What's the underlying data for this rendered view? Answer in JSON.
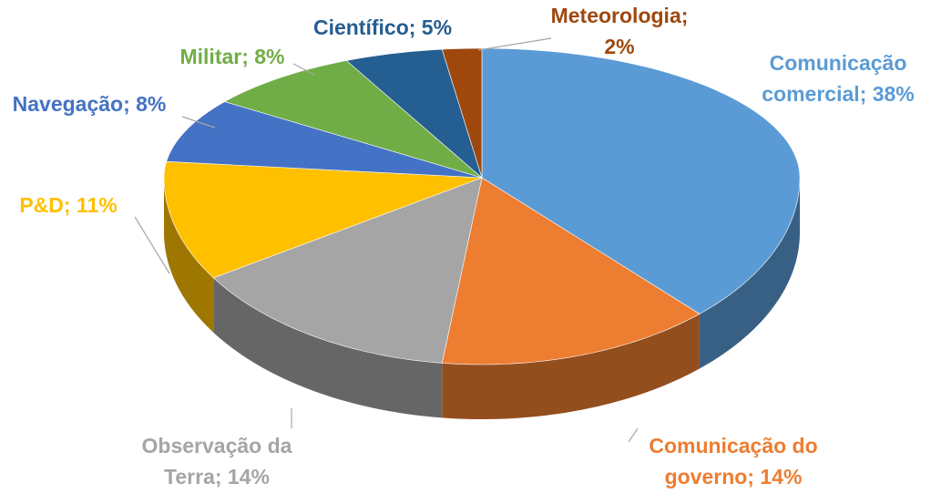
{
  "chart_data": {
    "type": "pie",
    "style": "3d",
    "start": "top, clockwise",
    "legend": "none (data labels)",
    "slices": [
      {
        "label": "Comunicação comercial",
        "value": 38,
        "text": "Comunicação comercial; 38%",
        "color": "#5B9BD5"
      },
      {
        "label": "Comunicação do governo",
        "value": 14,
        "text": "Comunicação do governo; 14%",
        "color": "#ED7D31"
      },
      {
        "label": "Observação da Terra",
        "value": 14,
        "text": "Observação da Terra; 14%",
        "color": "#A5A5A5"
      },
      {
        "label": "P&D",
        "value": 11,
        "text": "P&D; 11%",
        "color": "#FFC000"
      },
      {
        "label": "Navegação",
        "value": 8,
        "text": "Navegação; 8%",
        "color": "#4472C4"
      },
      {
        "label": "Militar",
        "value": 8,
        "text": "Militar; 8%",
        "color": "#70AD47"
      },
      {
        "label": "Científico",
        "value": 5,
        "text": "Científico; 5%",
        "color": "#255E91"
      },
      {
        "label": "Meteorologia",
        "value": 2,
        "text": "Meteorologia; 2%",
        "color": "#9E480E"
      }
    ]
  }
}
